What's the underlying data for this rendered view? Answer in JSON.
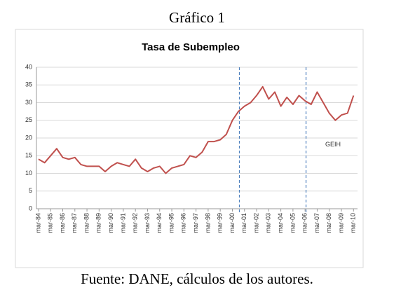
{
  "heading": "Gráfico 1",
  "source": "Fuente: DANE, cálculos de los autores.",
  "chart_data": {
    "type": "line",
    "title": "Tasa de Subempleo",
    "annotation": "GEIH",
    "color": "#c0504d",
    "grid": true,
    "vlines": [
      2000.75,
      2006.25
    ],
    "x": [
      1984.17,
      1984.67,
      1985.17,
      1985.67,
      1986.17,
      1986.67,
      1987.17,
      1987.67,
      1988.17,
      1988.67,
      1989.17,
      1989.67,
      1990.17,
      1990.67,
      1991.17,
      1991.67,
      1992.17,
      1992.67,
      1993.17,
      1993.67,
      1994.17,
      1994.67,
      1995.17,
      1995.67,
      1996.17,
      1996.67,
      1997.17,
      1997.67,
      1998.17,
      1998.67,
      1999.17,
      1999.67,
      2000.17,
      2000.67,
      2001.17,
      2001.67,
      2002.17,
      2002.67,
      2003.17,
      2003.67,
      2004.17,
      2004.67,
      2005.17,
      2005.67,
      2006.17,
      2006.67,
      2007.17,
      2007.67,
      2008.17,
      2008.67,
      2009.17,
      2009.67,
      2010.17
    ],
    "values": [
      14,
      13,
      15,
      17,
      14.5,
      14,
      14.5,
      12.5,
      12,
      12,
      12,
      10.5,
      12,
      13,
      12.5,
      12,
      14,
      11.5,
      10.5,
      11.5,
      12,
      10,
      11.5,
      12,
      12.5,
      15,
      14.5,
      16,
      19,
      19,
      19.5,
      21,
      25,
      27.5,
      29,
      30,
      32,
      34.5,
      31,
      33,
      29,
      31.5,
      29.5,
      32,
      30.5,
      29.5,
      33,
      30,
      27,
      25,
      26.5,
      27,
      32
    ],
    "xlim": [
      1984,
      2010.5
    ],
    "xticks": [
      {
        "value": 1984.17,
        "label": "mar-84"
      },
      {
        "value": 1985.17,
        "label": "mar-85"
      },
      {
        "value": 1986.17,
        "label": "mar-86"
      },
      {
        "value": 1987.17,
        "label": "mar-87"
      },
      {
        "value": 1988.17,
        "label": "mar-88"
      },
      {
        "value": 1989.17,
        "label": "mar-89"
      },
      {
        "value": 1990.17,
        "label": "mar-90"
      },
      {
        "value": 1991.17,
        "label": "mar-91"
      },
      {
        "value": 1992.17,
        "label": "mar-92"
      },
      {
        "value": 1993.17,
        "label": "mar-93"
      },
      {
        "value": 1994.17,
        "label": "mar-94"
      },
      {
        "value": 1995.17,
        "label": "mar-95"
      },
      {
        "value": 1996.17,
        "label": "mar-96"
      },
      {
        "value": 1997.17,
        "label": "mar-97"
      },
      {
        "value": 1998.17,
        "label": "mar-98"
      },
      {
        "value": 1999.17,
        "label": "mar-99"
      },
      {
        "value": 2000.17,
        "label": "mar-00"
      },
      {
        "value": 2001.17,
        "label": "mar-01"
      },
      {
        "value": 2002.17,
        "label": "mar-02"
      },
      {
        "value": 2003.17,
        "label": "mar-03"
      },
      {
        "value": 2004.17,
        "label": "mar-04"
      },
      {
        "value": 2005.17,
        "label": "mar-05"
      },
      {
        "value": 2006.17,
        "label": "mar-06"
      },
      {
        "value": 2007.17,
        "label": "mar-07"
      },
      {
        "value": 2008.17,
        "label": "mar-08"
      },
      {
        "value": 2009.17,
        "label": "mar-09"
      },
      {
        "value": 2010.17,
        "label": "mar-10"
      }
    ],
    "ylim": [
      0,
      40
    ],
    "yticks": [
      0,
      5,
      10,
      15,
      20,
      25,
      30,
      35,
      40
    ]
  }
}
